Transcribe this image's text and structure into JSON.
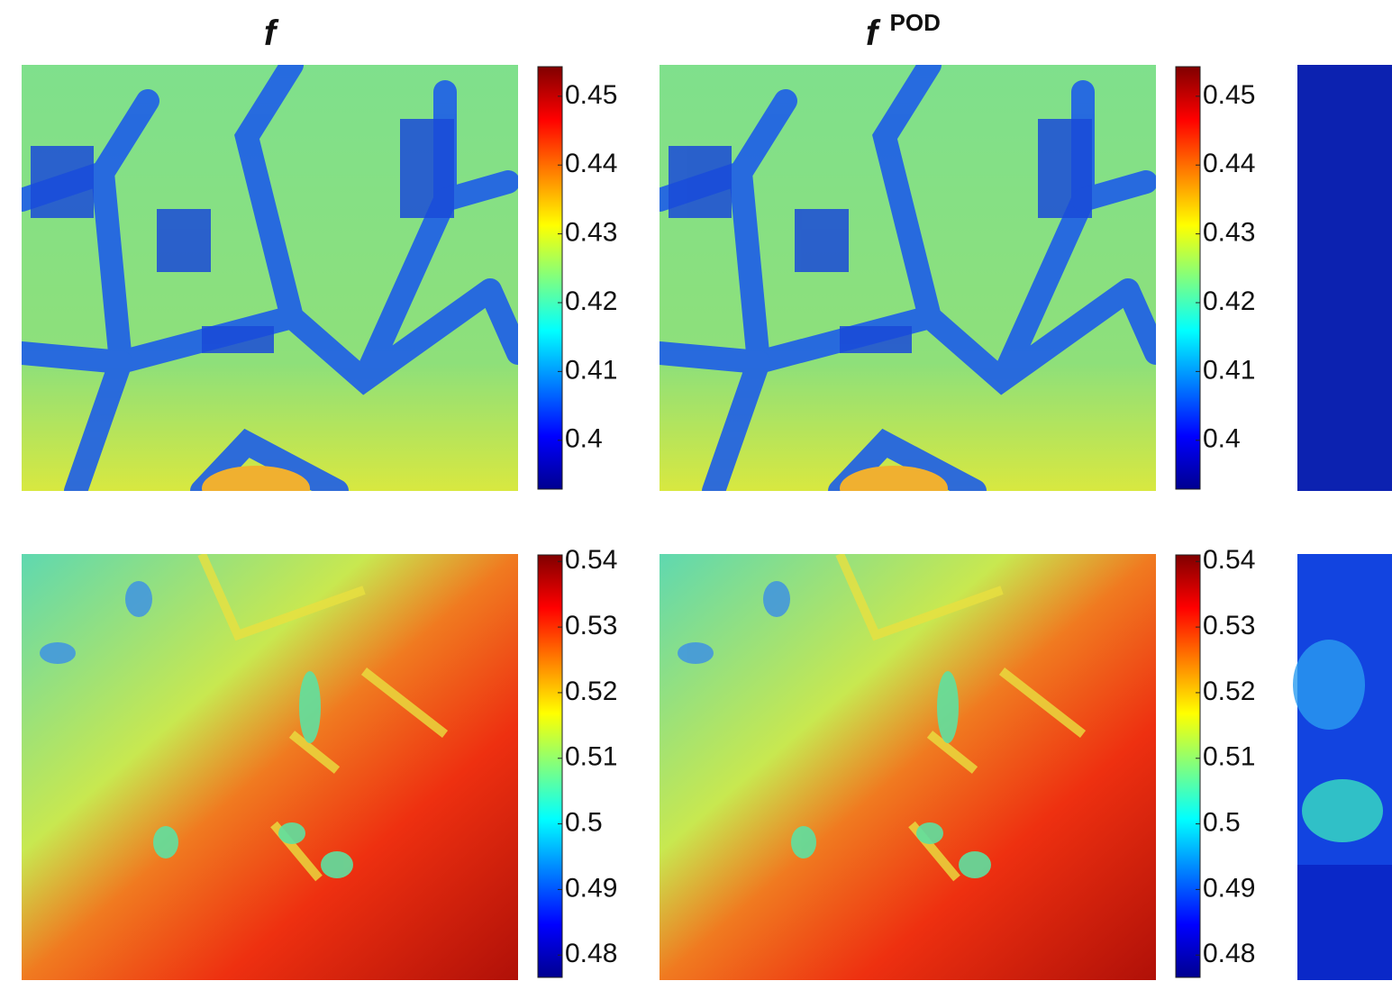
{
  "columns": [
    {
      "title": "f"
    },
    {
      "title": "f",
      "superscript": "POD"
    }
  ],
  "rows": [
    {
      "colorbar": {
        "lim": [
          0.3929,
          0.4543
        ],
        "ticks": [
          0.4,
          0.41,
          0.42,
          0.43,
          0.44,
          0.45
        ]
      }
    },
    {
      "colorbar": {
        "lim": [
          0.4766,
          0.541
        ],
        "ticks": [
          0.48,
          0.49,
          0.5,
          0.51,
          0.52,
          0.53,
          0.54
        ]
      }
    }
  ]
}
